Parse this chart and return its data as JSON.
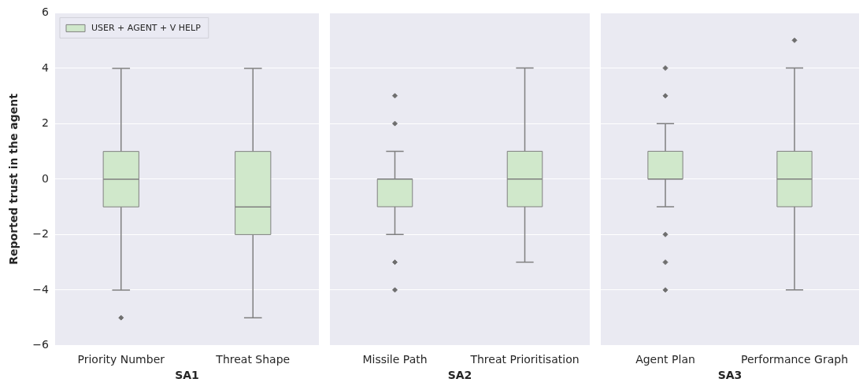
{
  "chart_data": [
    {
      "type": "box",
      "categories": [
        "Priority Number",
        "Threat Shape"
      ],
      "xlabel": "SA1",
      "ylabel": "Reported trust in the agent",
      "ylim": [
        -6,
        6
      ],
      "yticks": [
        -6,
        -4,
        -2,
        0,
        2,
        4,
        6
      ],
      "grid": "y",
      "legend": "top left",
      "series": [
        {
          "name": "USER + AGENT + V HELP",
          "color": "#d0e8cb",
          "boxes": [
            {
              "low": -4,
              "q1": -1,
              "median": 0,
              "q3": 1,
              "high": 4,
              "outliers": [
                -5
              ]
            },
            {
              "low": -5,
              "q1": -2,
              "median": -1,
              "q3": 1,
              "high": 4
            }
          ]
        }
      ]
    },
    {
      "type": "box",
      "categories": [
        "Missile Path",
        "Threat Prioritisation"
      ],
      "xlabel": "SA2",
      "ylim": [
        -6,
        6
      ],
      "yticks": [
        -6,
        -4,
        -2,
        0,
        2,
        4,
        6
      ],
      "grid": "y",
      "tick_labels": "x",
      "series": [
        {
          "color": "#d0e8cb",
          "boxes": [
            {
              "low": -2,
              "q1": -1,
              "median": 0,
              "q3": 0,
              "high": 1,
              "outliers": [
                3,
                2,
                -3,
                -4
              ]
            },
            {
              "low": -3,
              "q1": -1,
              "median": 0,
              "q3": 1,
              "high": 4
            }
          ]
        }
      ]
    },
    {
      "type": "box",
      "categories": [
        "Agent Plan",
        "Performance Graph"
      ],
      "xlabel": "SA3",
      "ylim": [
        -6,
        6
      ],
      "yticks": [
        -6,
        -4,
        -2,
        0,
        2,
        4,
        6
      ],
      "grid": "y",
      "tick_labels": "x",
      "series": [
        {
          "color": "#d0e8cb",
          "boxes": [
            {
              "low": -1,
              "q1": 0,
              "median": 0,
              "q3": 1,
              "high": 2,
              "outliers": [
                4,
                3,
                -2,
                -3,
                -4
              ]
            },
            {
              "low": -4,
              "q1": -1,
              "median": 0,
              "q3": 1,
              "high": 4,
              "outliers": [
                5
              ]
            }
          ]
        }
      ]
    }
  ]
}
